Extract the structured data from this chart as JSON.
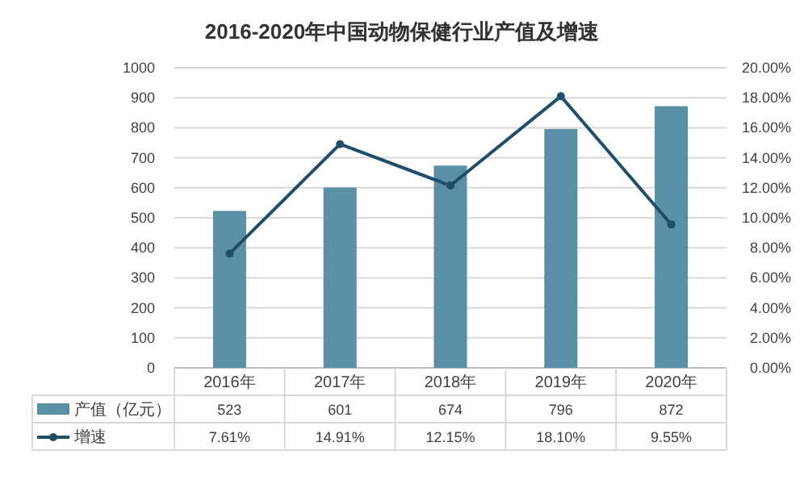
{
  "chart_data": {
    "type": "bar",
    "title": "2016-2020年中国动物保健行业产值及增速",
    "categories": [
      "2016年",
      "2017年",
      "2018年",
      "2019年",
      "2020年"
    ],
    "series": [
      {
        "name": "产值（亿元）",
        "color": "#5a8fa5",
        "values": [
          523,
          601,
          674,
          796,
          872
        ],
        "value_labels": [
          "523",
          "601",
          "674",
          "796",
          "872"
        ]
      },
      {
        "name": "增速",
        "type": "line",
        "axis": "y2",
        "color": "#1f4e6b",
        "marker": "circle",
        "values": [
          7.61,
          14.91,
          12.15,
          18.1,
          9.55
        ],
        "value_labels": [
          "7.61%",
          "14.91%",
          "12.15%",
          "18.10%",
          "9.55%"
        ]
      }
    ],
    "ylim": [
      0,
      1000
    ],
    "yticks": [
      0,
      100,
      200,
      300,
      400,
      500,
      600,
      700,
      800,
      900,
      1000
    ],
    "y2lim": [
      0,
      20
    ],
    "y2ticks": [
      {
        "value": 0,
        "label": "0.00%"
      },
      {
        "value": 2,
        "label": "2.00%"
      },
      {
        "value": 4,
        "label": "4.00%"
      },
      {
        "value": 6,
        "label": "6.00%"
      },
      {
        "value": 8,
        "label": "8.00%"
      },
      {
        "value": 10,
        "label": "10.00%"
      },
      {
        "value": 12,
        "label": "12.00%"
      },
      {
        "value": 14,
        "label": "14.00%"
      },
      {
        "value": 16,
        "label": "16.00%"
      },
      {
        "value": 18,
        "label": "18.00%"
      },
      {
        "value": 20,
        "label": "20.00%"
      }
    ],
    "grid": "y",
    "legend": "bottom"
  }
}
